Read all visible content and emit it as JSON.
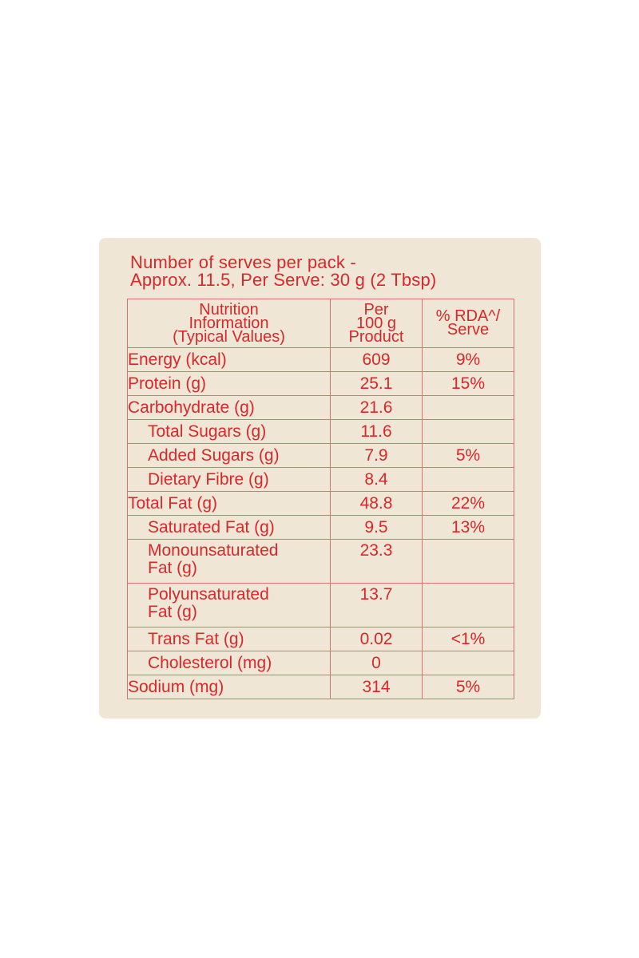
{
  "heading": {
    "line1": "Number of serves per pack -",
    "line2": "Approx. 11.5, Per Serve: 30 g (2 Tbsp)"
  },
  "table": {
    "headers": {
      "col1": [
        "Nutrition",
        "Information",
        "(Typical Values)"
      ],
      "col2": [
        "Per",
        "100 g",
        "Product"
      ],
      "col3": [
        "% RDA^/",
        "Serve"
      ]
    },
    "rows": [
      {
        "name": "Energy (kcal)",
        "value": "609",
        "rda": "9%"
      },
      {
        "name": "Protein (g)",
        "value": "25.1",
        "rda": "15%"
      },
      {
        "name": "Carbohydrate (g)",
        "value": "21.6",
        "rda": ""
      },
      {
        "name": "Total Sugars (g)",
        "value": "11.6",
        "rda": ""
      },
      {
        "name": "Added Sugars (g)",
        "value": "7.9",
        "rda": "5%"
      },
      {
        "name": "Dietary Fibre (g)",
        "value": "8.4",
        "rda": ""
      },
      {
        "name": "Total Fat (g)",
        "value": "48.8",
        "rda": "22%"
      },
      {
        "name": "Saturated Fat (g)",
        "value": "9.5",
        "rda": "13%"
      },
      {
        "name_line1": "Monounsaturated",
        "name_line2": "Fat (g)",
        "value": "23.3",
        "rda": ""
      },
      {
        "name_line1": "Polyunsaturated",
        "name_line2": "Fat (g)",
        "value": "13.7",
        "rda": ""
      },
      {
        "name": "Trans Fat (g)",
        "value": "0.02",
        "rda": "<1%"
      },
      {
        "name": "Cholesterol (mg)",
        "value": "0",
        "rda": ""
      },
      {
        "name": "Sodium (mg)",
        "value": "314",
        "rda": "5%"
      }
    ]
  },
  "colors": {
    "text": "#d8282b",
    "panel": "#efe6d6",
    "rule": "#e0706c"
  }
}
